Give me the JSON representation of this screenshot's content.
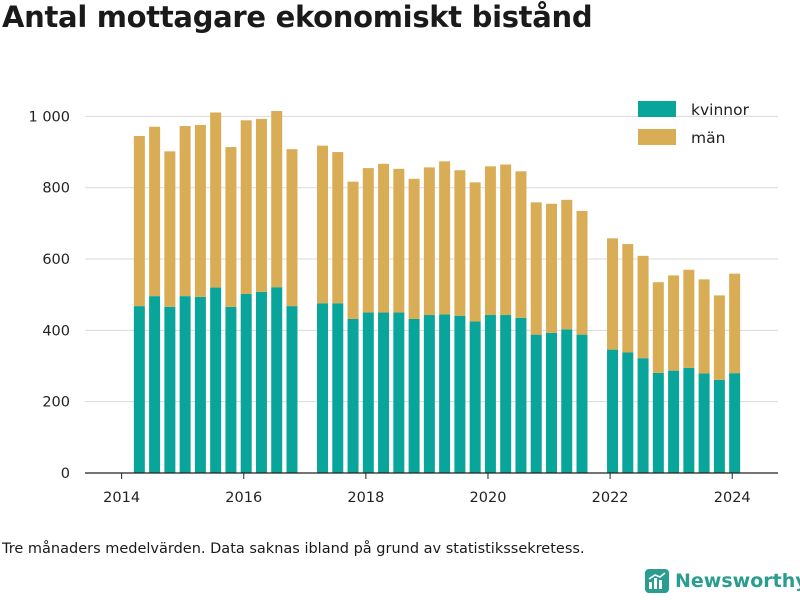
{
  "title": "Antal mottagare ekonomiskt bistånd",
  "footnote": "Tre månaders medelvärden. Data saknas ibland på grund av statistikssekretess.",
  "brand": "Newsworthy",
  "colors": {
    "kvinnor": "#0aa59a",
    "man": "#d9ac56",
    "grid": "#d9d9d9",
    "axis": "#222222"
  },
  "chart_data": {
    "type": "bar",
    "stacked": true,
    "title": "Antal mottagare ekonomiskt bistånd",
    "xlabel": "",
    "ylabel": "",
    "ylim": [
      0,
      1060
    ],
    "xlim": [
      2013.4,
      2024.75
    ],
    "yticks": [
      0,
      200,
      400,
      600,
      800,
      1000
    ],
    "ytick_labels": [
      "0",
      "200",
      "400",
      "600",
      "800",
      "1 000"
    ],
    "xticks": [
      2014,
      2016,
      2018,
      2020,
      2022,
      2024
    ],
    "xtick_labels": [
      "2014",
      "2016",
      "2018",
      "2020",
      "2022",
      "2024"
    ],
    "grid": true,
    "legend": "top-right",
    "x": [
      2014.29,
      2014.54,
      2014.79,
      2015.04,
      2015.29,
      2015.54,
      2015.79,
      2016.04,
      2016.29,
      2016.54,
      2016.79,
      2017.29,
      2017.54,
      2017.79,
      2018.04,
      2018.29,
      2018.54,
      2018.79,
      2019.04,
      2019.29,
      2019.54,
      2019.79,
      2020.04,
      2020.29,
      2020.54,
      2020.79,
      2021.04,
      2021.29,
      2021.54,
      2022.04,
      2022.29,
      2022.54,
      2022.79,
      2023.04,
      2023.29,
      2023.54,
      2023.79,
      2024.04
    ],
    "series": [
      {
        "name": "kvinnor",
        "values": [
          468,
          496,
          466,
          496,
          494,
          520,
          466,
          502,
          508,
          521,
          468,
          476,
          476,
          432,
          450,
          450,
          450,
          432,
          443,
          445,
          441,
          425,
          443,
          443,
          435,
          388,
          393,
          403,
          388,
          346,
          338,
          322,
          281,
          287,
          295,
          279,
          261,
          280
        ]
      },
      {
        "name": "män",
        "values": [
          477,
          475,
          436,
          477,
          482,
          491,
          448,
          487,
          485,
          494,
          440,
          442,
          424,
          385,
          405,
          417,
          403,
          393,
          414,
          429,
          408,
          390,
          417,
          422,
          411,
          371,
          362,
          363,
          347,
          312,
          304,
          287,
          254,
          267,
          275,
          264,
          237,
          279
        ]
      }
    ]
  }
}
